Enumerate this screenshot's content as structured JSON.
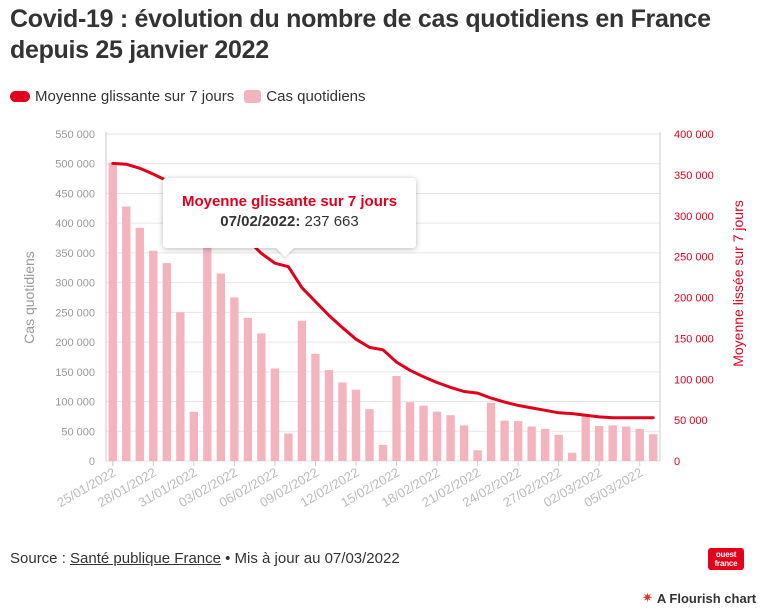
{
  "header": {
    "title": "Covid-19 : évolution du nombre de cas quotidiens en France depuis 25 janvier 2022"
  },
  "legend": {
    "line_label": "Moyenne glissante sur 7 jours",
    "bar_label": "Cas quotidiens"
  },
  "tooltip": {
    "title": "Moyenne glissante sur 7 jours",
    "date": "07/02/2022:",
    "value": "237 663"
  },
  "footer": {
    "source_prefix": "Source : ",
    "source_link": "Santé publique France",
    "updated": " • Mis à jour au 07/03/2022",
    "logo_text_1": "ouest",
    "logo_text_2": "france",
    "flourish_label": "A Flourish chart"
  },
  "colors": {
    "line": "#e0001b",
    "bar": "#f4b4be",
    "grid": "#e6e6e6",
    "axis_left_text": "#999999",
    "axis_right_text": "#e0001b"
  },
  "chart_data": {
    "type": "bar",
    "title": "Covid-19 : évolution du nombre de cas quotidiens en France depuis 25 janvier 2022",
    "ylabel_left": "Cas quotidiens",
    "ylabel_right": "Moyenne lissée sur 7 jours",
    "ylim_left": [
      0,
      550000
    ],
    "ylim_right": [
      0,
      400000
    ],
    "yticks_left": [
      "0",
      "50 000",
      "100 000",
      "150 000",
      "200 000",
      "250 000",
      "300 000",
      "350 000",
      "400 000",
      "450 000",
      "500 000",
      "550 000"
    ],
    "yticks_right": [
      "0",
      "50 000",
      "100 000",
      "150 000",
      "200 000",
      "250 000",
      "300 000",
      "350 000",
      "400 000"
    ],
    "xticks": [
      {
        "label": "25/01/2022",
        "index": 0
      },
      {
        "label": "28/01/2022",
        "index": 3
      },
      {
        "label": "31/01/2022",
        "index": 6
      },
      {
        "label": "03/02/2022",
        "index": 9
      },
      {
        "label": "06/02/2022",
        "index": 12
      },
      {
        "label": "09/02/2022",
        "index": 15
      },
      {
        "label": "12/02/2022",
        "index": 18
      },
      {
        "label": "15/02/2022",
        "index": 21
      },
      {
        "label": "18/02/2022",
        "index": 24
      },
      {
        "label": "21/02/2022",
        "index": 27
      },
      {
        "label": "24/02/2022",
        "index": 30
      },
      {
        "label": "27/02/2022",
        "index": 33
      },
      {
        "label": "02/03/2022",
        "index": 36
      },
      {
        "label": "05/03/2022",
        "index": 39
      }
    ],
    "series": [
      {
        "name": "Cas quotidiens",
        "kind": "bar",
        "axis": "left",
        "values": [
          501635,
          428008,
          392168,
          353587,
          332901,
          250181,
          82802,
          361813,
          315364,
          275085,
          240785,
          214745,
          155580,
          46232,
          235802,
          180211,
          153135,
          132123,
          119839,
          87279,
          27000,
          143000,
          99000,
          93000,
          83000,
          77000,
          60000,
          18000,
          98000,
          68000,
          67000,
          58000,
          54000,
          44000,
          14000,
          77000,
          59000,
          60000,
          58000,
          54000,
          45000
        ]
      },
      {
        "name": "Moyenne glissante sur 7 jours",
        "kind": "line",
        "axis": "right",
        "values": [
          364000,
          363000,
          358000,
          351000,
          343000,
          334000,
          322000,
          310000,
          298000,
          285000,
          270000,
          254000,
          242000,
          237663,
          212000,
          195000,
          178000,
          163000,
          149000,
          139000,
          136000,
          121000,
          111000,
          103000,
          96000,
          90000,
          85000,
          83000,
          77000,
          72000,
          68000,
          65000,
          62000,
          59000,
          58000,
          56000,
          54000,
          53000,
          53000,
          53000,
          53000
        ]
      }
    ]
  }
}
